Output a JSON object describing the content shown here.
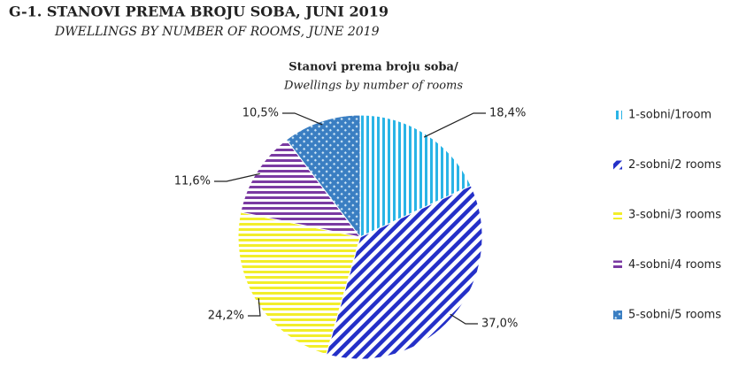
{
  "chart_data": {
    "type": "pie",
    "title": "G-1. STANOVI PREMA BROJU SOBA, JUNI 2019",
    "subtitle": "DWELLINGS BY NUMBER OF ROOMS, JUNE 2019",
    "chart_title": [
      "Stanovi prema broju soba/",
      "Dwellings by number of rooms"
    ],
    "categories": [
      "1-sobni/1room",
      "2-sobni/2 rooms",
      "3-sobni/3 rooms",
      "4-sobni/4 rooms",
      "5-sobni/5 rooms"
    ],
    "values": [
      18.4,
      37.0,
      24.2,
      11.6,
      10.5
    ],
    "value_labels": [
      "18,4%",
      "37,0%",
      "24,2%",
      "11,6%",
      "10,5%"
    ],
    "colors": [
      "#2ab4e6",
      "#2430c8",
      "#f2ee2a",
      "#7a3aa2",
      "#3a7ec2"
    ],
    "patterns": [
      "vertical",
      "diagonal",
      "horizontal",
      "horizontal",
      "cross"
    ],
    "legend": "right"
  }
}
